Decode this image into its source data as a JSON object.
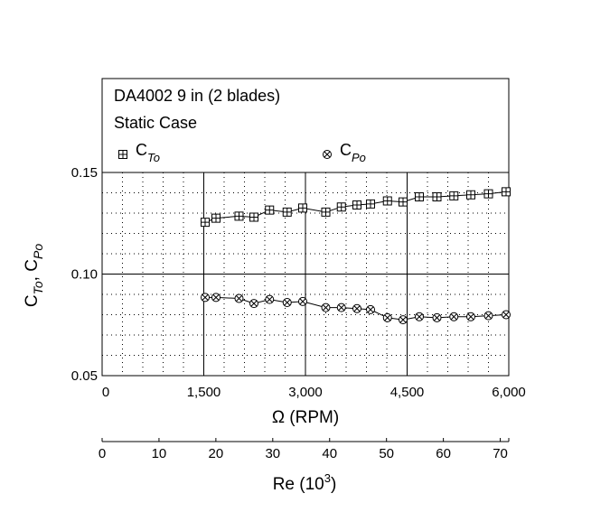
{
  "chart_data": {
    "type": "line",
    "title_lines": [
      "DA4002 9 in (2 blades)",
      "Static Case"
    ],
    "legend": [
      {
        "base": "C",
        "sub": "To",
        "marker": "boxplus"
      },
      {
        "base": "C",
        "sub": "Po",
        "marker": "circletimes"
      }
    ],
    "xlabel": "Ω (RPM)",
    "ylabel": {
      "c1": "C",
      "s1": "To",
      "comma": ", ",
      "c2": "C",
      "s2": "Po"
    },
    "xlim": [
      0,
      6000
    ],
    "ylim": [
      0.05,
      0.15
    ],
    "x_ticks": [
      0,
      1500,
      3000,
      4500,
      6000
    ],
    "x_tick_labels": [
      "0",
      "1,500",
      "3,000",
      "4,500",
      "6,000"
    ],
    "y_ticks": [
      0.05,
      0.1,
      0.15
    ],
    "y_tick_labels": [
      "0.05",
      "0.10",
      "0.15"
    ],
    "grid": "major solid, minor dotted",
    "legend_placement": "top",
    "series": [
      {
        "name": "C_To",
        "marker": "boxplus",
        "x": [
          1520,
          1680,
          2020,
          2240,
          2470,
          2730,
          2960,
          3300,
          3530,
          3760,
          3960,
          4210,
          4440,
          4680,
          4940,
          5190,
          5440,
          5700,
          5960
        ],
        "y": [
          0.1255,
          0.1275,
          0.1285,
          0.128,
          0.1315,
          0.1305,
          0.1325,
          0.1305,
          0.133,
          0.134,
          0.1345,
          0.136,
          0.1355,
          0.138,
          0.138,
          0.1385,
          0.139,
          0.1395,
          0.1405
        ]
      },
      {
        "name": "C_Po",
        "marker": "circletimes",
        "x": [
          1520,
          1680,
          2020,
          2240,
          2470,
          2730,
          2960,
          3300,
          3530,
          3760,
          3960,
          4210,
          4440,
          4680,
          4940,
          5190,
          5440,
          5700,
          5960
        ],
        "y": [
          0.0885,
          0.0885,
          0.088,
          0.0855,
          0.0875,
          0.086,
          0.0865,
          0.0835,
          0.0835,
          0.083,
          0.0825,
          0.0785,
          0.0775,
          0.079,
          0.0785,
          0.079,
          0.079,
          0.0795,
          0.08
        ]
      }
    ],
    "secondary_axis": {
      "xlabel_base": "Re (10",
      "xlabel_sup": "3",
      "xlabel_close": ")",
      "xlim": [
        0,
        71.5
      ],
      "ticks": [
        0,
        10,
        20,
        30,
        40,
        50,
        60,
        70
      ],
      "tick_labels": [
        "0",
        "10",
        "20",
        "30",
        "40",
        "50",
        "60",
        "70"
      ]
    }
  }
}
